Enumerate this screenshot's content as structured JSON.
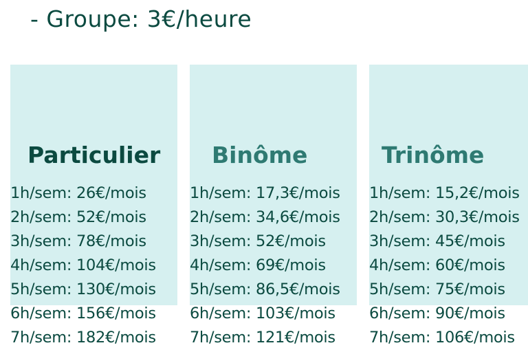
{
  "header": {
    "text": "- Groupe: 3€/heure"
  },
  "colors": {
    "box_bg": "#d6f0f0",
    "text_dark": "#0b4a40",
    "title_teal": "#2e7a72"
  },
  "columns": [
    {
      "title": "Particulier",
      "rows": [
        "1h/sem: 26€/mois",
        "2h/sem: 52€/mois",
        "3h/sem: 78€/mois",
        "4h/sem: 104€/mois",
        "5h/sem: 130€/mois",
        "6h/sem: 156€/mois",
        "7h/sem: 182€/mois"
      ]
    },
    {
      "title": "Binôme",
      "rows": [
        "1h/sem: 17,3€/mois",
        "2h/sem: 34,6€/mois",
        "3h/sem: 52€/mois",
        "4h/sem: 69€/mois",
        "5h/sem: 86,5€/mois",
        "6h/sem: 103€/mois",
        "7h/sem: 121€/mois"
      ]
    },
    {
      "title": "Trinôme",
      "rows": [
        "1h/sem: 15,2€/mois",
        "2h/sem: 30,3€/mois",
        "3h/sem: 45€/mois",
        "4h/sem: 60€/mois",
        "5h/sem: 75€/mois",
        "6h/sem: 90€/mois",
        "7h/sem: 106€/mois"
      ]
    }
  ]
}
